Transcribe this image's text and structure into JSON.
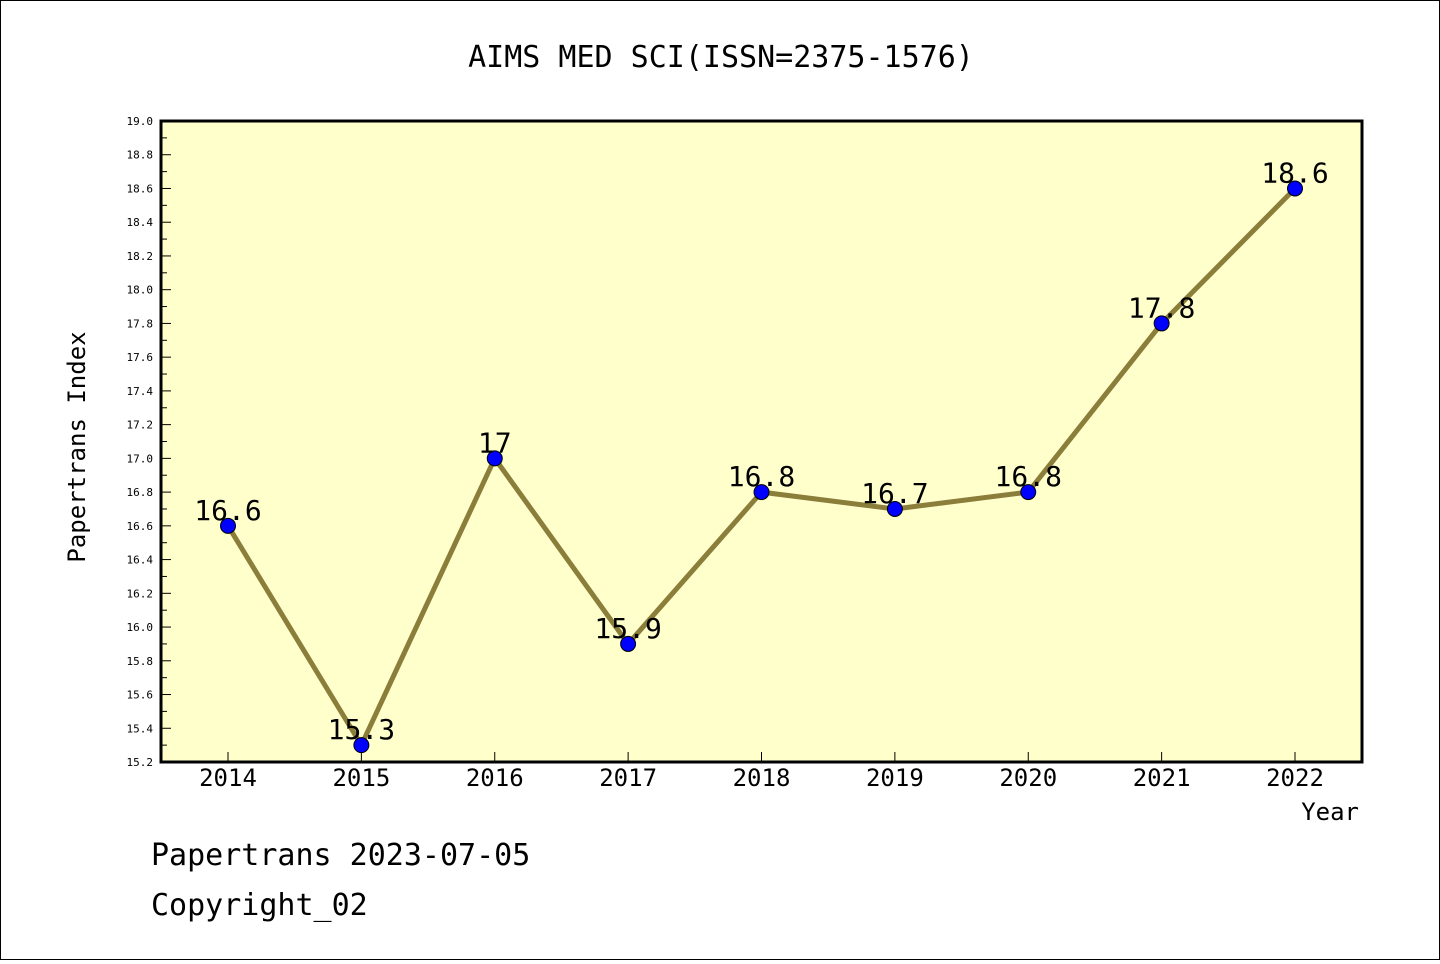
{
  "chart_data": {
    "type": "line",
    "title": "AIMS MED SCI(ISSN=2375-1576)",
    "xlabel": "Year",
    "ylabel": "Papertrans Index",
    "categories": [
      "2014",
      "2015",
      "2016",
      "2017",
      "2018",
      "2019",
      "2020",
      "2021",
      "2022"
    ],
    "values": [
      16.6,
      15.3,
      17,
      15.9,
      16.8,
      16.7,
      16.8,
      17.8,
      18.6
    ],
    "data_labels": [
      "16.6",
      "15.3",
      "17",
      "15.9",
      "16.8",
      "16.7",
      "16.8",
      "17.8",
      "18.6"
    ],
    "ylim": [
      15.2,
      19.0
    ],
    "yticks": [
      "15.2",
      "15.4",
      "15.6",
      "15.8",
      "16.0",
      "16.2",
      "16.4",
      "16.6",
      "16.8",
      "17.0",
      "17.2",
      "17.4",
      "17.6",
      "17.8",
      "18.0",
      "18.2",
      "18.4",
      "18.6",
      "18.8",
      "19.0"
    ],
    "grid": false,
    "colors": {
      "plot_background": "#ffffcc",
      "line": "#8b7d3a",
      "marker": "#0000ff"
    }
  },
  "footer": {
    "line1": "Papertrans 2023-07-05",
    "line2": "Copyright_02"
  }
}
